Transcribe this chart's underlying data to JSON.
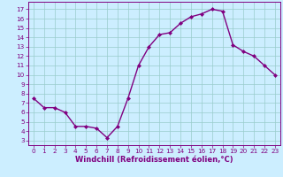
{
  "x": [
    0,
    1,
    2,
    3,
    4,
    5,
    6,
    7,
    8,
    9,
    10,
    11,
    12,
    13,
    14,
    15,
    16,
    17,
    18,
    19,
    20,
    21,
    22,
    23
  ],
  "y": [
    7.5,
    6.5,
    6.5,
    6.0,
    4.5,
    4.5,
    4.3,
    3.3,
    4.5,
    7.5,
    11.0,
    13.0,
    14.3,
    14.5,
    15.5,
    16.2,
    16.5,
    17.0,
    16.8,
    13.2,
    12.5,
    12.0,
    11.0,
    10.0
  ],
  "line_color": "#800080",
  "marker_color": "#800080",
  "bg_color": "#cceeff",
  "grid_color": "#99cccc",
  "xlabel": "Windchill (Refroidissement éolien,°C)",
  "xlim": [
    -0.5,
    23.5
  ],
  "ylim": [
    2.5,
    17.8
  ],
  "yticks": [
    3,
    4,
    5,
    6,
    7,
    8,
    9,
    10,
    11,
    12,
    13,
    14,
    15,
    16,
    17
  ],
  "xticks": [
    0,
    1,
    2,
    3,
    4,
    5,
    6,
    7,
    8,
    9,
    10,
    11,
    12,
    13,
    14,
    15,
    16,
    17,
    18,
    19,
    20,
    21,
    22,
    23
  ],
  "tick_color": "#800080",
  "axis_color": "#800080",
  "font_color": "#800080",
  "label_fontsize": 6.0,
  "tick_fontsize": 5.2,
  "linewidth": 1.0,
  "markersize": 2.0
}
